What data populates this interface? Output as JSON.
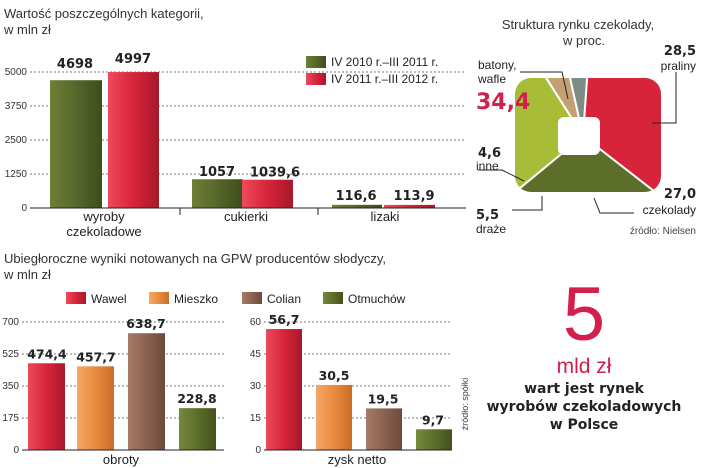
{
  "colors": {
    "dark_green": "#5a6b2c",
    "crimson": "#d7243a",
    "orange": "#ea8a3e",
    "brown": "#8a6250",
    "olive": "#5d6e2a",
    "olive_light": "#a5b83a",
    "tan": "#c3a074",
    "gray_teal": "#7c8c84",
    "accent_pink": "#d21f4c"
  },
  "top_chart": {
    "title_line1": "Wartość poszczególnych kategorii,",
    "title_line2": "w mln zł",
    "legend": [
      "IV 2010 r.–III 2011 r.",
      "IV 2011 r.–III 2012 r."
    ],
    "category_labels": [
      [
        "wyroby",
        "czekoladowe"
      ],
      [
        "cukierki"
      ],
      [
        "lizaki"
      ]
    ],
    "value_labels": [
      [
        "4698",
        "4997"
      ],
      [
        "1057",
        "1039,6"
      ],
      [
        "116,6",
        "113,9"
      ]
    ],
    "ticks": [
      "0",
      "1250",
      "2500",
      "3750",
      "5000"
    ]
  },
  "pie": {
    "title_line1": "Struktura rynku czekolady,",
    "title_line2": "w proc.",
    "labels": {
      "batony_line1": "batony,",
      "batony_line2": "wafle",
      "batony_value": "34,4",
      "praliny_value": "28,5",
      "praliny_name": "praliny",
      "inne_value": "4,6",
      "inne_name": "inne",
      "czekolady_value": "27,0",
      "czekolady_name": "czekolady",
      "draze_value": "5,5",
      "draze_name": "draże"
    },
    "source": "źródło: Nielsen"
  },
  "bottom": {
    "title_line1": "Ubiegłoroczne wyniki  notowanych na GPW producentów słodyczy,",
    "title_line2": "w mln zł",
    "legend": [
      "Wawel",
      "Mieszko",
      "Colian",
      "Otmuchów"
    ],
    "left_label": "obroty",
    "left_value_labels": [
      "474,4",
      "457,7",
      "638,7",
      "228,8"
    ],
    "left_ticks": [
      "0",
      "175",
      "350",
      "525",
      "700"
    ],
    "right_label": "zysk netto",
    "right_value_labels": [
      "56,7",
      "30,5",
      "19,5",
      "9,7"
    ],
    "right_ticks": [
      "0",
      "15",
      "30",
      "45",
      "60"
    ],
    "source": "źródło: spółki"
  },
  "callout": {
    "big_number": "5",
    "unit": "mld zł",
    "line1": "wart jest rynek",
    "line2": "wyrobów czekoladowych",
    "line3": "w Polsce"
  },
  "chart_data": [
    {
      "type": "bar",
      "title": "Wartość poszczególnych kategorii, w mln zł",
      "categories": [
        "wyroby czekoladowe",
        "cukierki",
        "lizaki"
      ],
      "series": [
        {
          "name": "IV 2010 r.–III 2011 r.",
          "values": [
            4698,
            1057,
            116.6
          ]
        },
        {
          "name": "IV 2011 r.–III 2012 r.",
          "values": [
            4997,
            1039.6,
            113.9
          ]
        }
      ],
      "ylim": [
        0,
        5000
      ]
    },
    {
      "type": "pie",
      "title": "Struktura rynku czekolady, w proc.",
      "labels": [
        "batony, wafle",
        "praliny",
        "czekolady",
        "draże",
        "inne"
      ],
      "values": [
        34.4,
        28.5,
        27.0,
        5.5,
        4.6
      ]
    },
    {
      "type": "bar",
      "title": "Ubiegłoroczne wyniki notowanych na GPW producentów słodyczy, w mln zł — obroty",
      "categories": [
        "Wawel",
        "Mieszko",
        "Colian",
        "Otmuchów"
      ],
      "values": [
        474.4,
        457.7,
        638.7,
        228.8
      ],
      "ylim": [
        0,
        700
      ]
    },
    {
      "type": "bar",
      "title": "Ubiegłoroczne wyniki notowanych na GPW producentów słodyczy, w mln zł — zysk netto",
      "categories": [
        "Wawel",
        "Mieszko",
        "Colian",
        "Otmuchów"
      ],
      "values": [
        56.7,
        30.5,
        19.5,
        9.7
      ],
      "ylim": [
        0,
        60
      ]
    }
  ]
}
